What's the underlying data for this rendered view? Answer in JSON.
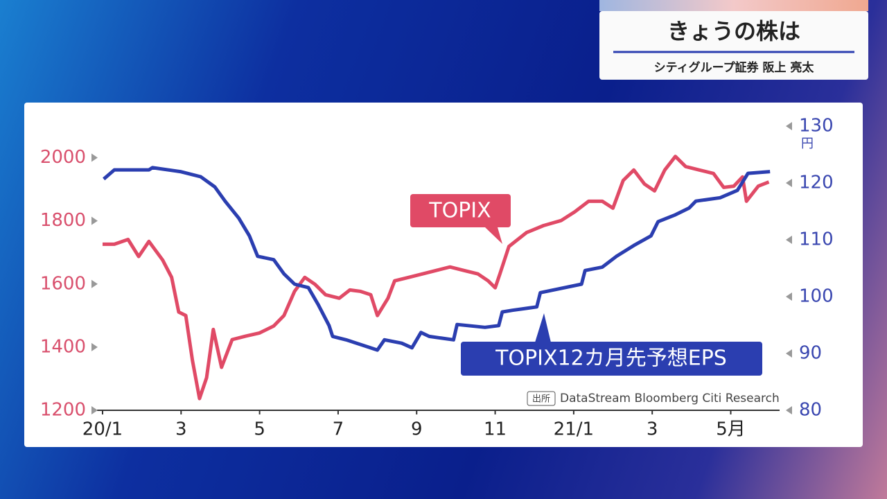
{
  "header": {
    "title": "きょうの株は",
    "subtitle": "シティグループ証券 阪上 亮太"
  },
  "chart_data": {
    "type": "line",
    "annotations": [
      "TOPIX",
      "TOPIX12カ月先予想EPS"
    ],
    "y2_unit": "円",
    "source_label": "出所",
    "source": "DataStream Bloomberg Citi Research",
    "xlim": [
      0,
      17.05
    ],
    "xticks": [
      {
        "value": 0,
        "label": "20/1"
      },
      {
        "value": 2,
        "label": "3"
      },
      {
        "value": 4,
        "label": "5"
      },
      {
        "value": 6,
        "label": "7"
      },
      {
        "value": 8,
        "label": "9"
      },
      {
        "value": 10,
        "label": "11"
      },
      {
        "value": 12,
        "label": "21/1"
      },
      {
        "value": 14,
        "label": "3"
      },
      {
        "value": 16,
        "label": "5月"
      }
    ],
    "ylim": [
      1200,
      2100
    ],
    "yticks": [
      1200,
      1400,
      1600,
      1800,
      2000
    ],
    "y2lim": [
      80,
      130
    ],
    "y2ticks": [
      80,
      90,
      100,
      110,
      120,
      130
    ],
    "series": [
      {
        "name": "TOPIX",
        "color": "#e04a66",
        "x": [
          0,
          0.3,
          0.65,
          0.92,
          1.18,
          1.53,
          1.76,
          1.94,
          2.12,
          2.29,
          2.47,
          2.65,
          2.82,
          3.03,
          3.3,
          3.65,
          4.0,
          4.36,
          4.62,
          4.89,
          5.15,
          5.41,
          5.68,
          6.03,
          6.3,
          6.56,
          6.83,
          7.0,
          7.27,
          7.44,
          7.8,
          8.15,
          8.5,
          8.85,
          9.2,
          9.56,
          9.82,
          10.0,
          10.12,
          10.35,
          10.8,
          11.23,
          11.68,
          12.03,
          12.38,
          12.73,
          13.0,
          13.26,
          13.53,
          13.8,
          14.06,
          14.32,
          14.59,
          14.85,
          15.2,
          15.56,
          15.82,
          16.08,
          16.3,
          16.4,
          16.7,
          16.97
        ],
        "values": [
          1726,
          1726,
          1741,
          1687,
          1735,
          1676,
          1621,
          1511,
          1500,
          1358,
          1237,
          1303,
          1456,
          1336,
          1424,
          1435,
          1445,
          1467,
          1500,
          1577,
          1621,
          1599,
          1566,
          1555,
          1581,
          1577,
          1566,
          1500,
          1555,
          1610,
          1621,
          1632,
          1643,
          1654,
          1643,
          1632,
          1610,
          1588,
          1632,
          1719,
          1763,
          1785,
          1801,
          1829,
          1862,
          1862,
          1840,
          1928,
          1961,
          1917,
          1895,
          1961,
          2004,
          1972,
          1961,
          1950,
          1906,
          1910,
          1939,
          1862,
          1910,
          1923
        ]
      },
      {
        "name": "TOPIX12カ月先予想EPS",
        "color": "#2b3eb0",
        "axis": "y2",
        "x": [
          0.03,
          0.3,
          1.18,
          1.27,
          1.98,
          2.5,
          2.86,
          3.12,
          3.47,
          3.74,
          3.95,
          4.36,
          4.62,
          4.89,
          5.24,
          5.5,
          5.77,
          5.86,
          6.2,
          6.47,
          6.74,
          7.0,
          7.18,
          7.62,
          7.88,
          8.11,
          8.32,
          8.94,
          9.03,
          9.74,
          10.09,
          10.18,
          10.44,
          11.06,
          11.15,
          11.5,
          12.2,
          12.29,
          12.73,
          13.09,
          13.53,
          13.97,
          14.15,
          14.59,
          14.94,
          15.11,
          15.73,
          16.17,
          16.44,
          17.0
        ],
        "values": [
          120.7,
          122.3,
          122.3,
          122.7,
          122,
          121.1,
          119.3,
          116.8,
          113.8,
          110.7,
          107.1,
          106.5,
          104,
          102.2,
          101.6,
          98.5,
          94.9,
          93,
          92.4,
          91.8,
          91.2,
          90.6,
          92.4,
          91.8,
          91,
          93.7,
          93,
          92.4,
          95.1,
          94.6,
          94.9,
          97.3,
          97.6,
          98.2,
          100.7,
          101.2,
          102.2,
          104.6,
          105.2,
          107.1,
          109,
          110.7,
          113.2,
          114.4,
          115.6,
          116.8,
          117.4,
          118.7,
          121.7,
          122
        ]
      }
    ]
  }
}
